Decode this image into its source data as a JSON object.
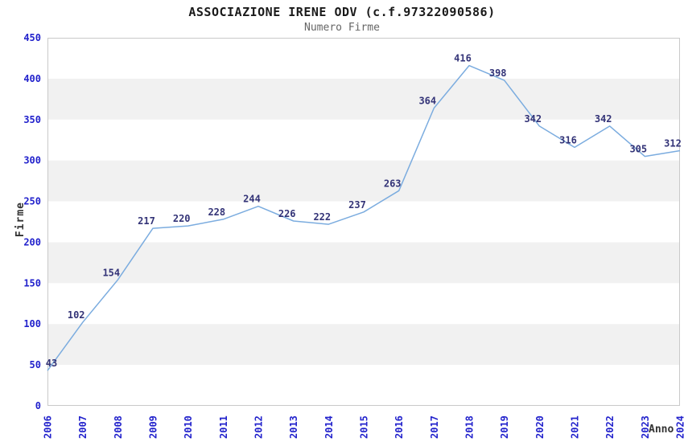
{
  "header": {
    "title": "ASSOCIAZIONE IRENE ODV (c.f.97322090586)",
    "subtitle": "Numero Firme"
  },
  "chart_data": {
    "type": "line",
    "title": "ASSOCIAZIONE IRENE ODV (c.f.97322090586)",
    "subtitle": "Numero Firme",
    "xlabel": "Anno",
    "ylabel": "Firme",
    "categories": [
      "2006",
      "2007",
      "2008",
      "2009",
      "2010",
      "2011",
      "2012",
      "2013",
      "2014",
      "2015",
      "2016",
      "2017",
      "2018",
      "2019",
      "2020",
      "2021",
      "2022",
      "2023",
      "2024"
    ],
    "series": [
      {
        "name": "Numero Firme",
        "values": [
          43,
          102,
          154,
          217,
          220,
          228,
          244,
          226,
          222,
          237,
          263,
          364,
          416,
          398,
          342,
          316,
          342,
          305,
          312
        ]
      }
    ],
    "ylim": [
      0,
      450
    ],
    "ytick_step": 50,
    "yticks": [
      0,
      50,
      100,
      150,
      200,
      250,
      300,
      350,
      400,
      450
    ],
    "grid": "alternating-horizontal-bands",
    "legend_position": "none",
    "point_labels_visible": true,
    "colors": {
      "line": "#7BACDF",
      "tick_label": "#2222CC",
      "value_label": "#333377",
      "band": "#F1F1F1",
      "plot_border": "#C9C9C9",
      "title": "#1A1A1A",
      "subtitle": "#666666",
      "axis_title": "#333333",
      "background": "#FFFFFF"
    }
  }
}
